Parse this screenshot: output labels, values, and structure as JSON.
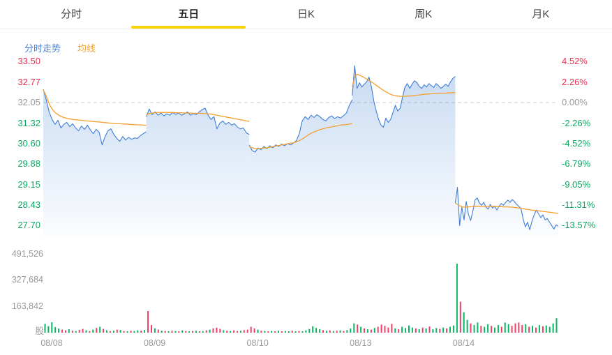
{
  "tabs": {
    "items": [
      {
        "label": "分时",
        "active": false
      },
      {
        "label": "五日",
        "active": true
      },
      {
        "label": "日K",
        "active": false
      },
      {
        "label": "周K",
        "active": false
      },
      {
        "label": "月K",
        "active": false
      }
    ]
  },
  "legend": {
    "price_label": "分时走势",
    "ma_label": "均线"
  },
  "colors": {
    "up_red": "#e8304f",
    "down_green": "#0ca861",
    "neutral": "#999999",
    "price_line": "#3e7dd8",
    "ma_line": "#f5a02d",
    "area_top": "rgba(80,140,215,0.30)",
    "area_bottom": "rgba(80,140,215,0.02)",
    "vol_red": "#ee3f64",
    "vol_green": "#0cb563",
    "dashed_line": "#c8c8c8",
    "tab_underline": "#f7d500",
    "legend_price": "#4a7edb",
    "legend_ma": "#f5a02d"
  },
  "chart_data": {
    "type": "line",
    "subtype": "5-day intraday price with moving average and volume",
    "base_price": 32.05,
    "price_axis": [
      33.5,
      32.77,
      32.05,
      31.32,
      30.6,
      29.88,
      29.15,
      28.43,
      27.7
    ],
    "percent_axis": [
      "4.52%",
      "2.26%",
      "0.00%",
      "-2.26%",
      "-4.52%",
      "-6.79%",
      "-9.05%",
      "-11.31%",
      "-13.57%"
    ],
    "ylim": [
      27.45,
      33.7
    ],
    "volume_axis": [
      491526,
      327684,
      163842
    ],
    "volume_ylim": [
      0,
      491526
    ],
    "volume_unit": "股",
    "grid": "zero-line-dashed-only",
    "legend_position": "top-left",
    "dates": [
      "08/08",
      "08/09",
      "08/10",
      "08/13",
      "08/14"
    ],
    "days": [
      {
        "date": "08/08",
        "price": [
          32.52,
          32.15,
          31.72,
          31.45,
          31.28,
          31.42,
          31.15,
          31.28,
          31.35,
          31.2,
          31.3,
          31.15,
          31.05,
          31.22,
          31.1,
          31.25,
          31.08,
          30.95,
          31.1,
          31.0,
          30.55,
          30.85,
          31.05,
          31.12,
          30.92,
          30.78,
          30.68,
          30.85,
          30.72,
          30.82,
          30.75,
          30.8,
          30.78,
          30.88,
          30.95,
          31.02
        ],
        "ma": [
          32.5,
          32.28,
          32.0,
          31.82,
          31.7,
          31.62,
          31.56,
          31.52,
          31.49,
          31.47,
          31.45,
          31.44,
          31.43,
          31.42,
          31.41,
          31.4,
          31.39,
          31.38,
          31.37,
          31.36,
          31.35,
          31.34,
          31.33,
          31.32,
          31.31,
          31.3,
          31.3,
          31.29,
          31.29,
          31.28,
          31.27,
          31.27,
          31.26,
          31.26,
          31.25,
          31.24
        ],
        "volume_k": [
          [
            52,
            "g"
          ],
          [
            38,
            "g"
          ],
          [
            61,
            "g"
          ],
          [
            33,
            "g"
          ],
          [
            24,
            "g"
          ],
          [
            18,
            "r"
          ],
          [
            14,
            "r"
          ],
          [
            20,
            "g"
          ],
          [
            12,
            "r"
          ],
          [
            10,
            "g"
          ],
          [
            16,
            "r"
          ],
          [
            22,
            "r"
          ],
          [
            14,
            "g"
          ],
          [
            10,
            "r"
          ],
          [
            18,
            "g"
          ],
          [
            28,
            "r"
          ],
          [
            35,
            "g"
          ],
          [
            22,
            "r"
          ],
          [
            14,
            "g"
          ],
          [
            10,
            "r"
          ],
          [
            12,
            "g"
          ],
          [
            18,
            "r"
          ],
          [
            16,
            "g"
          ],
          [
            10,
            "r"
          ],
          [
            8,
            "g"
          ],
          [
            12,
            "r"
          ],
          [
            10,
            "g"
          ],
          [
            14,
            "g"
          ],
          [
            12,
            "r"
          ],
          [
            16,
            "g"
          ]
        ]
      },
      {
        "date": "08/09",
        "price": [
          31.55,
          31.82,
          31.62,
          31.72,
          31.6,
          31.68,
          31.58,
          31.65,
          31.6,
          31.7,
          31.63,
          31.68,
          31.6,
          31.65,
          31.72,
          31.6,
          31.66,
          31.62,
          31.72,
          31.8,
          31.85,
          31.6,
          31.45,
          31.55,
          31.12,
          31.32,
          31.4,
          31.28,
          31.35,
          31.25,
          31.3,
          31.18,
          31.12,
          31.15,
          30.98,
          30.92
        ],
        "ma": [
          31.6,
          31.66,
          31.68,
          31.69,
          31.7,
          31.7,
          31.7,
          31.7,
          31.7,
          31.7,
          31.69,
          31.69,
          31.69,
          31.68,
          31.68,
          31.68,
          31.67,
          31.67,
          31.67,
          31.66,
          31.66,
          31.65,
          31.64,
          31.62,
          31.6,
          31.58,
          31.56,
          31.54,
          31.52,
          31.5,
          31.48,
          31.46,
          31.44,
          31.42,
          31.4,
          31.38
        ],
        "volume_k": [
          [
            127,
            "r"
          ],
          [
            45,
            "r"
          ],
          [
            25,
            "g"
          ],
          [
            18,
            "r"
          ],
          [
            12,
            "g"
          ],
          [
            10,
            "r"
          ],
          [
            8,
            "g"
          ],
          [
            12,
            "r"
          ],
          [
            10,
            "g"
          ],
          [
            8,
            "r"
          ],
          [
            14,
            "g"
          ],
          [
            10,
            "r"
          ],
          [
            8,
            "g"
          ],
          [
            10,
            "r"
          ],
          [
            12,
            "g"
          ],
          [
            8,
            "r"
          ],
          [
            10,
            "g"
          ],
          [
            14,
            "r"
          ],
          [
            18,
            "g"
          ],
          [
            25,
            "r"
          ],
          [
            30,
            "r"
          ],
          [
            22,
            "r"
          ],
          [
            15,
            "g"
          ],
          [
            12,
            "r"
          ],
          [
            10,
            "g"
          ],
          [
            14,
            "r"
          ],
          [
            10,
            "r"
          ],
          [
            12,
            "g"
          ],
          [
            15,
            "r"
          ],
          [
            18,
            "r"
          ]
        ]
      },
      {
        "date": "08/10",
        "price": [
          30.55,
          30.35,
          30.3,
          30.45,
          30.38,
          30.5,
          30.42,
          30.52,
          30.45,
          30.55,
          30.5,
          30.58,
          30.52,
          30.6,
          30.55,
          30.62,
          30.7,
          30.95,
          31.4,
          31.55,
          31.45,
          31.6,
          31.52,
          31.62,
          31.55,
          31.45,
          31.4,
          31.52,
          31.58,
          31.48,
          31.55,
          31.5,
          31.58,
          31.68,
          31.95,
          32.15
        ],
        "ma": [
          30.5,
          30.45,
          30.42,
          30.42,
          30.43,
          30.44,
          30.45,
          30.47,
          30.49,
          30.51,
          30.53,
          30.55,
          30.57,
          30.59,
          30.61,
          30.63,
          30.66,
          30.7,
          30.76,
          30.83,
          30.9,
          30.96,
          31.01,
          31.05,
          31.09,
          31.12,
          31.15,
          31.17,
          31.19,
          31.21,
          31.23,
          31.25,
          31.26,
          31.27,
          31.29,
          31.3
        ],
        "volume_k": [
          [
            35,
            "r"
          ],
          [
            25,
            "r"
          ],
          [
            18,
            "g"
          ],
          [
            12,
            "r"
          ],
          [
            10,
            "g"
          ],
          [
            8,
            "r"
          ],
          [
            10,
            "g"
          ],
          [
            8,
            "r"
          ],
          [
            12,
            "g"
          ],
          [
            8,
            "r"
          ],
          [
            10,
            "g"
          ],
          [
            8,
            "g"
          ],
          [
            12,
            "r"
          ],
          [
            8,
            "g"
          ],
          [
            10,
            "r"
          ],
          [
            8,
            "g"
          ],
          [
            14,
            "g"
          ],
          [
            22,
            "g"
          ],
          [
            38,
            "g"
          ],
          [
            28,
            "g"
          ],
          [
            20,
            "g"
          ],
          [
            15,
            "r"
          ],
          [
            12,
            "g"
          ],
          [
            14,
            "r"
          ],
          [
            10,
            "g"
          ],
          [
            12,
            "r"
          ],
          [
            14,
            "g"
          ],
          [
            10,
            "r"
          ],
          [
            15,
            "g"
          ],
          [
            25,
            "g"
          ]
        ]
      },
      {
        "date": "08/13",
        "price": [
          32.3,
          33.35,
          32.55,
          32.75,
          32.6,
          32.7,
          32.78,
          32.95,
          32.6,
          32.1,
          31.75,
          31.45,
          31.25,
          31.18,
          31.5,
          31.35,
          31.45,
          31.7,
          31.95,
          31.75,
          31.85,
          32.25,
          32.6,
          32.72,
          32.55,
          32.7,
          32.82,
          32.75,
          32.62,
          32.55,
          32.68,
          32.6,
          32.72,
          32.65,
          32.58,
          32.72,
          32.65,
          32.55,
          32.62,
          32.7,
          32.62,
          32.78,
          32.9,
          32.97
        ],
        "ma": [
          32.6,
          32.95,
          33.05,
          33.02,
          32.98,
          32.93,
          32.88,
          32.83,
          32.78,
          32.72,
          32.66,
          32.6,
          32.54,
          32.48,
          32.43,
          32.38,
          32.34,
          32.31,
          32.29,
          32.28,
          32.27,
          32.27,
          32.27,
          32.28,
          32.28,
          32.29,
          32.3,
          32.31,
          32.32,
          32.33,
          32.34,
          32.35,
          32.35,
          32.36,
          32.36,
          32.37,
          32.37,
          32.38,
          32.38,
          32.38,
          32.39,
          32.39,
          32.4,
          32.4
        ],
        "volume_k": [
          [
            55,
            "g"
          ],
          [
            48,
            "r"
          ],
          [
            35,
            "g"
          ],
          [
            25,
            "r"
          ],
          [
            20,
            "g"
          ],
          [
            18,
            "r"
          ],
          [
            28,
            "g"
          ],
          [
            35,
            "r"
          ],
          [
            48,
            "r"
          ],
          [
            40,
            "r"
          ],
          [
            30,
            "r"
          ],
          [
            52,
            "r"
          ],
          [
            25,
            "g"
          ],
          [
            20,
            "r"
          ],
          [
            35,
            "g"
          ],
          [
            28,
            "g"
          ],
          [
            42,
            "g"
          ],
          [
            30,
            "g"
          ],
          [
            25,
            "r"
          ],
          [
            20,
            "g"
          ],
          [
            30,
            "r"
          ],
          [
            25,
            "g"
          ],
          [
            36,
            "r"
          ],
          [
            20,
            "g"
          ],
          [
            28,
            "g"
          ],
          [
            22,
            "r"
          ],
          [
            30,
            "g"
          ],
          [
            25,
            "r"
          ],
          [
            35,
            "g"
          ],
          [
            42,
            "g"
          ]
        ]
      },
      {
        "date": "08/14",
        "price": [
          28.5,
          29.05,
          27.7,
          28.35,
          27.9,
          28.55,
          28.1,
          27.88,
          28.2,
          28.6,
          28.68,
          28.5,
          28.42,
          28.52,
          28.35,
          28.28,
          28.45,
          28.32,
          28.38,
          28.25,
          28.38,
          28.48,
          28.42,
          28.52,
          28.6,
          28.52,
          28.62,
          28.55,
          28.45,
          28.38,
          28.3,
          27.92,
          27.65,
          27.82,
          27.55,
          27.85,
          28.08,
          28.25,
          28.12,
          27.98,
          28.08,
          27.9,
          27.95,
          27.82,
          27.7,
          27.58,
          27.72,
          27.68
        ],
        "ma": [
          28.5,
          28.45,
          28.4,
          28.37,
          28.35,
          28.35,
          28.36,
          28.36,
          28.37,
          28.37,
          28.38,
          28.38,
          28.38,
          28.38,
          28.38,
          28.38,
          28.38,
          28.38,
          28.38,
          28.37,
          28.37,
          28.37,
          28.36,
          28.36,
          28.36,
          28.35,
          28.35,
          28.34,
          28.33,
          28.32,
          28.31,
          28.3,
          28.28,
          28.27,
          28.26,
          28.25,
          28.24,
          28.23,
          28.22,
          28.21,
          28.2,
          28.19,
          28.18,
          28.17,
          28.16,
          28.15,
          28.14,
          28.13
        ],
        "volume_k": [
          [
            405,
            "g"
          ],
          [
            182,
            "r"
          ],
          [
            120,
            "g"
          ],
          [
            75,
            "g"
          ],
          [
            55,
            "r"
          ],
          [
            45,
            "g"
          ],
          [
            60,
            "g"
          ],
          [
            40,
            "r"
          ],
          [
            35,
            "g"
          ],
          [
            50,
            "g"
          ],
          [
            40,
            "r"
          ],
          [
            30,
            "g"
          ],
          [
            45,
            "g"
          ],
          [
            35,
            "r"
          ],
          [
            60,
            "g"
          ],
          [
            50,
            "g"
          ],
          [
            40,
            "r"
          ],
          [
            55,
            "r"
          ],
          [
            60,
            "r"
          ],
          [
            45,
            "r"
          ],
          [
            50,
            "g"
          ],
          [
            35,
            "r"
          ],
          [
            40,
            "g"
          ],
          [
            30,
            "r"
          ],
          [
            45,
            "g"
          ],
          [
            38,
            "r"
          ],
          [
            42,
            "g"
          ],
          [
            35,
            "g"
          ],
          [
            55,
            "g"
          ],
          [
            85,
            "g"
          ]
        ]
      }
    ]
  }
}
